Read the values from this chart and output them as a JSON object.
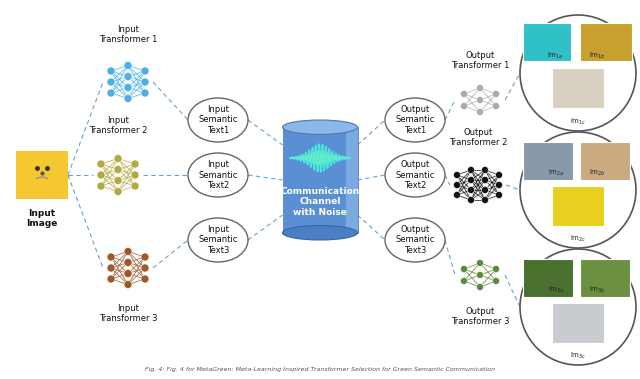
{
  "background": "#ffffff",
  "transformer1_color": "#4ab0e8",
  "transformer2_color": "#b5a840",
  "transformer3_color": "#a05828",
  "output_transformer1_color": "#aaaaaa",
  "output_transformer2_color": "#111111",
  "output_transformer3_color": "#5a8a3a",
  "dashed_line_color": "#5599cc",
  "labels": {
    "input_image": "Input\nImage",
    "input_tf1": "Input\nTransformer 1",
    "input_tf2": "Input\nTransformer 2",
    "input_tf3": "Input\nTransformer 3",
    "in_sem1": "Input\nSemantic\nText1",
    "in_sem2": "Input\nSemantic\nText2",
    "in_sem3": "Input\nSemantic\nText3",
    "channel": "Communication\nChannel\nwith Noise",
    "out_sem1": "Output\nSemantic\nText1",
    "out_sem2": "Output\nSemantic\nText2",
    "out_sem3": "Output\nSemantic\nText3",
    "out_tf1": "Output\nTransformer 1",
    "out_tf2": "Output\nTransformer 2",
    "out_tf3": "Output\nTransformer 3",
    "im1a": "Im$_{1a}$",
    "im1b": "Im$_{1b}$",
    "im1c": "Im$_{1c}$",
    "im2a": "Im$_{2a}$",
    "im2b": "Im$_{2b}$",
    "im2c": "Im$_{2c}$",
    "im3a": "Im$_{3a}$",
    "im3b": "Im$_{3b}$",
    "im3c": "Im$_{3c}$"
  },
  "caption": "Fig. 4: Fig. 4 for MetaGreen: Meta-Learning Inspired Transformer Selection for Green Semantic Communication"
}
